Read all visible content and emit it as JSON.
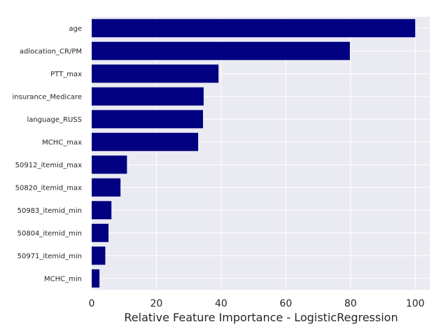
{
  "chart_data": {
    "type": "bar",
    "orientation": "horizontal",
    "categories": [
      "age",
      "adlocation_CR/PM",
      "PTT_max",
      "insurance_Medicare",
      "language_RUSS",
      "MCHC_max",
      "50912_itemid_max",
      "50820_itemid_max",
      "50983_itemid_min",
      "50804_itemid_min",
      "50971_itemid_min",
      "MCHC_min"
    ],
    "values": [
      100,
      79.8,
      39.2,
      34.6,
      34.4,
      32.9,
      10.9,
      8.9,
      6.1,
      5.2,
      4.2,
      2.4
    ],
    "xlabel": "Relative Feature Importance - LogisticRegression",
    "ylabel": "",
    "xlim": [
      0,
      104.5
    ],
    "xticks": [
      0,
      20,
      40,
      60,
      80,
      100
    ],
    "grid": true,
    "colors": {
      "bar": "#000080",
      "background": "#eaeaf2",
      "grid": "#ffffff"
    }
  }
}
